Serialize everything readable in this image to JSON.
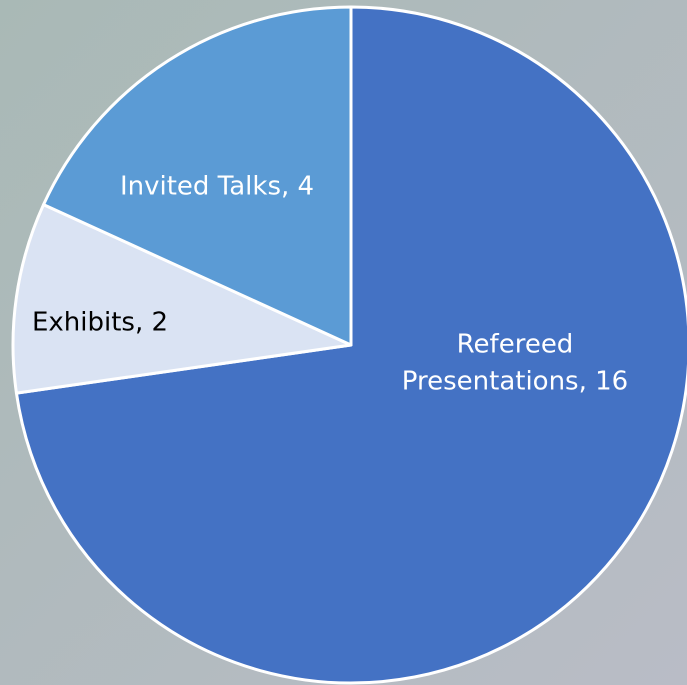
{
  "chart_data": {
    "type": "pie",
    "values": [
      16,
      2,
      4
    ],
    "value_labels": [
      "Refereed Presentations, 16",
      "Exhibits, 2",
      "Invited Talks, 4"
    ],
    "colors": [
      "#4472c4",
      "#dae3f3",
      "#5b9bd5"
    ],
    "label_colors": [
      "#ffffff",
      "#000000",
      "#ffffff"
    ]
  }
}
